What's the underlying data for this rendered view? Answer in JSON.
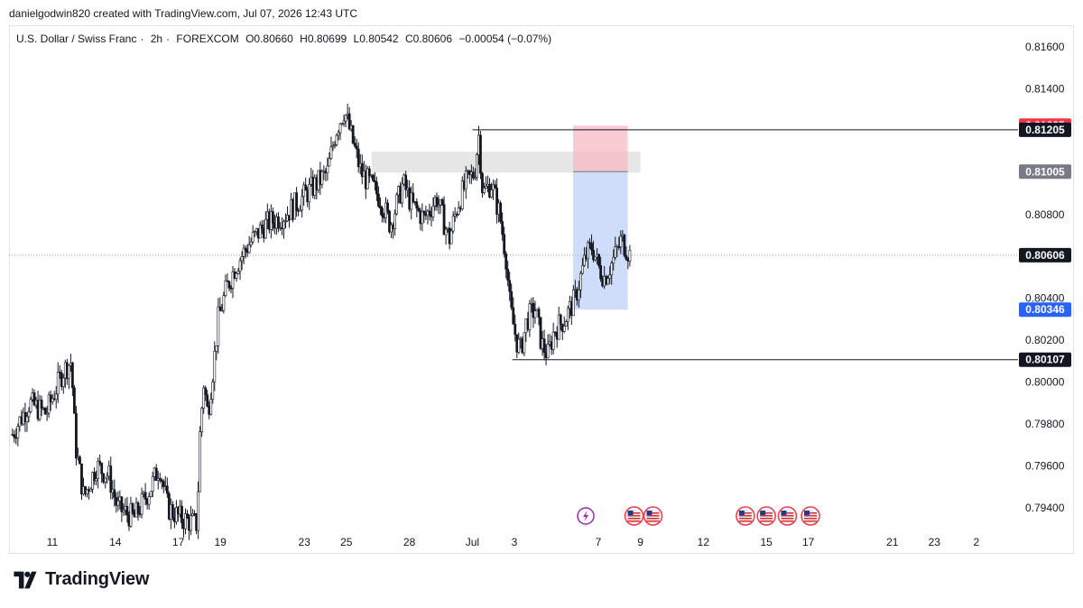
{
  "header": {
    "text": "danielgodwin820 created with TradingView.com, Jul 07, 2026 12:43 UTC"
  },
  "legend": {
    "symbol": "U.S. Dollar / Swiss Franc",
    "interval": "2h",
    "exchange": "FOREXCOM",
    "open": "O0.80660",
    "high": "H0.80699",
    "low": "L0.80542",
    "close": "C0.80606",
    "change": "−0.00054 (−0.07%)"
  },
  "brand": {
    "name": "TradingView"
  },
  "chart_data": {
    "type": "candlestick",
    "symbol": "USDCHF",
    "interval": "2h",
    "y_axis": {
      "ylim": [
        0.793,
        0.817
      ],
      "ticks": [
        "0.81600",
        "0.81400",
        "0.81200",
        "0.81000",
        "0.80800",
        "0.80600",
        "0.80400",
        "0.80200",
        "0.80000",
        "0.79800",
        "0.79600",
        "0.79400"
      ]
    },
    "x_axis": {
      "ticks": [
        {
          "label": "11",
          "t": 10.9
        },
        {
          "label": "14",
          "t": 13.9
        },
        {
          "label": "17",
          "t": 16.9
        },
        {
          "label": "19",
          "t": 18.9
        },
        {
          "label": "23",
          "t": 22.9
        },
        {
          "label": "25",
          "t": 24.9
        },
        {
          "label": "28",
          "t": 27.9
        },
        {
          "label": "Jul",
          "t": 30.9
        },
        {
          "label": "3",
          "t": 32.9
        },
        {
          "label": "7",
          "t": 36.9
        },
        {
          "label": "9",
          "t": 38.9
        },
        {
          "label": "12",
          "t": 41.9
        },
        {
          "label": "15",
          "t": 44.9
        },
        {
          "label": "17",
          "t": 46.9
        },
        {
          "label": "21",
          "t": 50.9
        },
        {
          "label": "23",
          "t": 52.9
        },
        {
          "label": "2",
          "t": 54.9
        }
      ]
    },
    "price_path": [
      [
        9.0,
        0.7975
      ],
      [
        9.8,
        0.799
      ],
      [
        10.6,
        0.7985
      ],
      [
        11.4,
        0.8005
      ],
      [
        11.8,
        0.801
      ],
      [
        12.0,
        0.797
      ],
      [
        12.4,
        0.7945
      ],
      [
        13.0,
        0.796
      ],
      [
        13.6,
        0.7955
      ],
      [
        14.0,
        0.794
      ],
      [
        14.8,
        0.7935
      ],
      [
        15.6,
        0.795
      ],
      [
        16.0,
        0.796
      ],
      [
        16.4,
        0.794
      ],
      [
        17.0,
        0.7935
      ],
      [
        17.8,
        0.7932
      ],
      [
        17.9,
        0.797
      ],
      [
        18.1,
        0.8
      ],
      [
        18.3,
        0.7985
      ],
      [
        18.6,
        0.801
      ],
      [
        18.8,
        0.803
      ],
      [
        19.2,
        0.8045
      ],
      [
        19.6,
        0.8055
      ],
      [
        20.2,
        0.8065
      ],
      [
        21.0,
        0.8075
      ],
      [
        22.0,
        0.808
      ],
      [
        23.0,
        0.809
      ],
      [
        24.0,
        0.81
      ],
      [
        24.4,
        0.812
      ],
      [
        24.8,
        0.813
      ],
      [
        25.2,
        0.8115
      ],
      [
        25.6,
        0.81
      ],
      [
        26.0,
        0.8095
      ],
      [
        26.5,
        0.8088
      ],
      [
        27.0,
        0.8075
      ],
      [
        27.6,
        0.8095
      ],
      [
        28.0,
        0.8085
      ],
      [
        28.6,
        0.8078
      ],
      [
        29.2,
        0.8088
      ],
      [
        29.8,
        0.8068
      ],
      [
        30.2,
        0.8085
      ],
      [
        30.6,
        0.8095
      ],
      [
        31.0,
        0.81
      ],
      [
        31.2,
        0.8118
      ],
      [
        31.4,
        0.809
      ],
      [
        31.8,
        0.8095
      ],
      [
        32.2,
        0.808
      ],
      [
        32.5,
        0.806
      ],
      [
        32.7,
        0.8035
      ],
      [
        33.0,
        0.802
      ],
      [
        33.2,
        0.8015
      ],
      [
        33.5,
        0.803
      ],
      [
        33.9,
        0.8035
      ],
      [
        34.2,
        0.8018
      ],
      [
        34.5,
        0.8013
      ],
      [
        34.8,
        0.8025
      ],
      [
        35.3,
        0.803
      ],
      [
        35.8,
        0.804
      ],
      [
        36.3,
        0.806
      ],
      [
        36.6,
        0.8065
      ],
      [
        36.9,
        0.8055
      ],
      [
        37.2,
        0.805
      ],
      [
        37.6,
        0.8058
      ],
      [
        38.0,
        0.8068
      ],
      [
        38.4,
        0.8061
      ]
    ],
    "candle_count": 340,
    "current_price": {
      "label": "0.80606",
      "value": 0.80606
    },
    "drawings": {
      "resistance_line": {
        "label": "0.81205",
        "value": 0.81205,
        "t_start": 30.9
      },
      "support_line": {
        "label": "0.80107",
        "value": 0.80107,
        "t_start": 32.8
      },
      "supply_zone": {
        "y_top": 0.811,
        "y_bottom": 0.81,
        "t_start": 26.1,
        "t_end": 38.9
      },
      "short_position": {
        "stop": {
          "label": "0.81225",
          "value": 0.81225
        },
        "entry": {
          "label": "0.81005",
          "value": 0.81005
        },
        "target": {
          "label": "0.80346",
          "value": 0.80346
        },
        "t_start": 35.7,
        "t_end": 38.3
      }
    },
    "event_markers": [
      {
        "type": "lightning-icon",
        "t": 36.3
      },
      {
        "type": "us-flag-icon",
        "t": 38.6
      },
      {
        "type": "us-flag-icon",
        "t": 39.5
      },
      {
        "type": "us-flag-icon",
        "t": 43.9
      },
      {
        "type": "us-flag-icon",
        "t": 44.9
      },
      {
        "type": "us-flag-icon",
        "t": 45.9
      },
      {
        "type": "us-flag-icon",
        "t": 47.0
      }
    ]
  }
}
